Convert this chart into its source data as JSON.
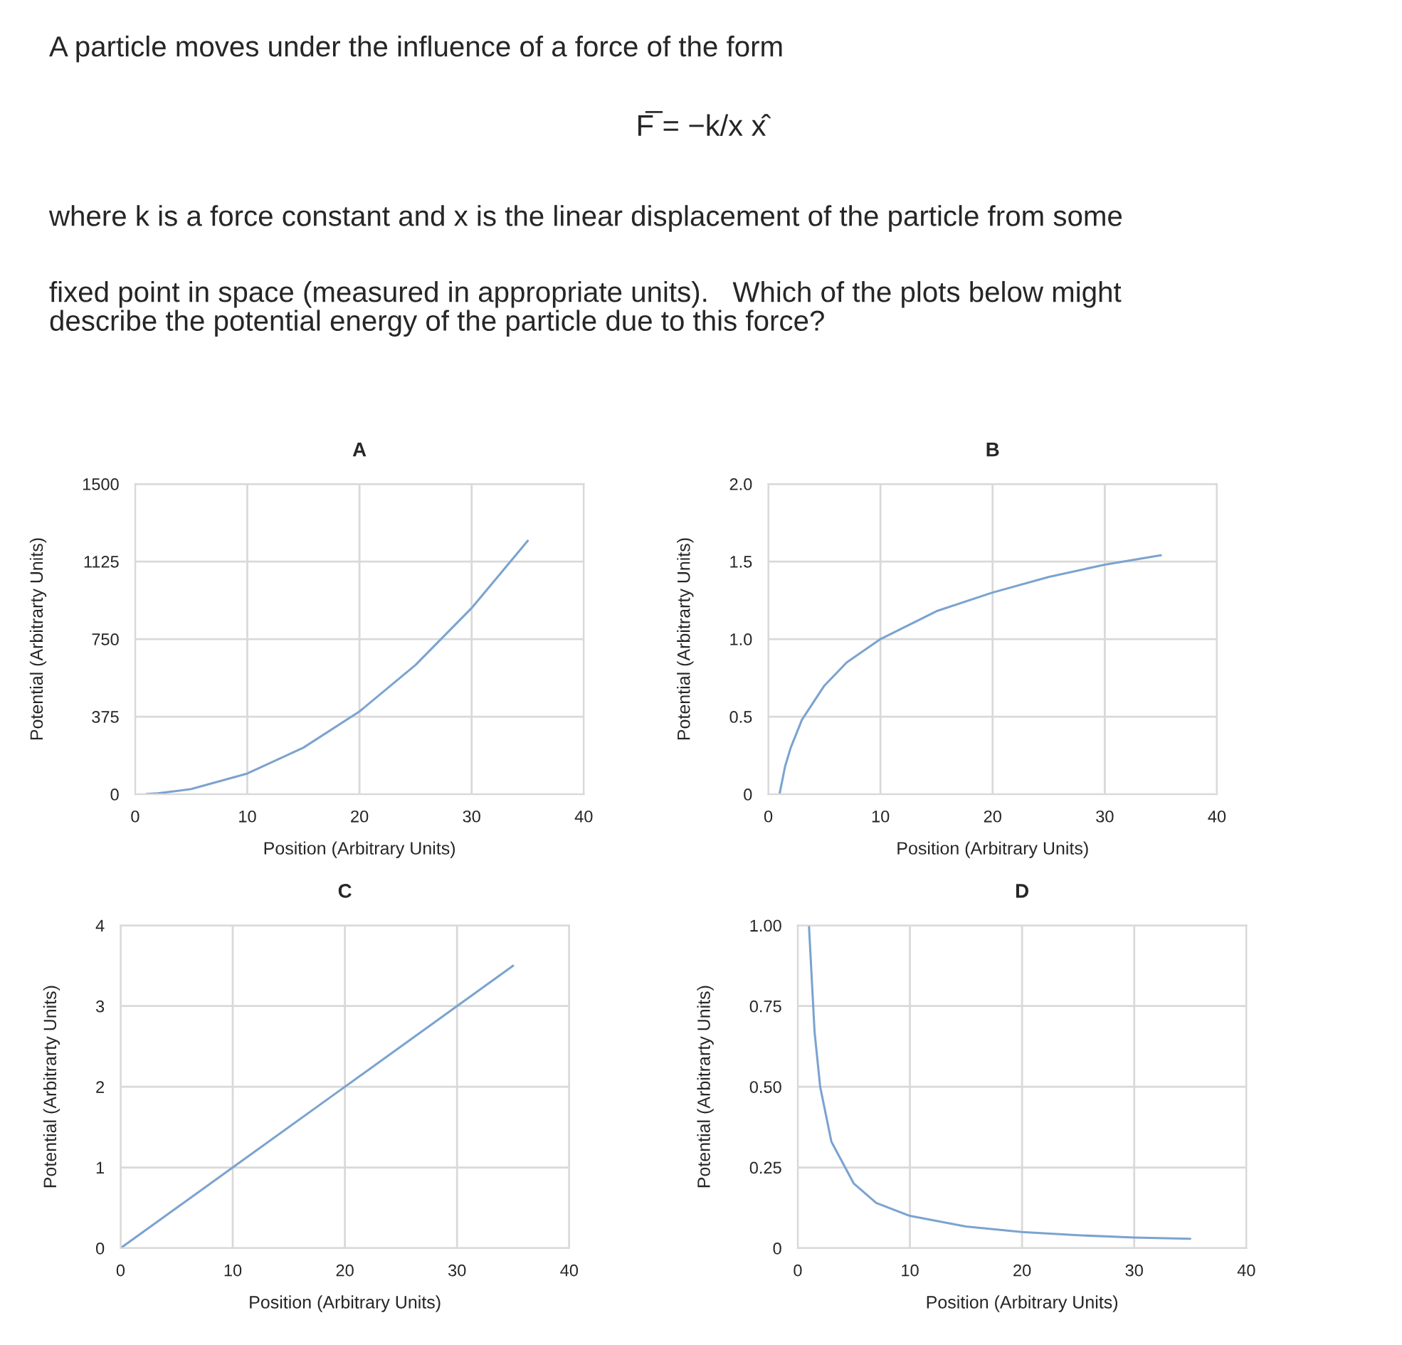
{
  "chart_data": [
    {
      "type": "other",
      "annotations": [
        "A particle moves under the influence of a force of the form",
        "F̅ = −k/x x̂",
        "where k is a force constant and x is the linear displacement of the particle from some",
        "fixed point in space (measured in appropriate units).   Which of the plots below might\ndescribe the potential energy of the particle due to this force?"
      ]
    },
    {
      "type": "line",
      "title": "A",
      "xlabel": "Position (Arbitrary Units)",
      "ylabel": "Potential (Arbitrarty Units)",
      "grid": true,
      "xlim": [
        0,
        40
      ],
      "xticks": [
        0,
        10,
        20,
        30,
        40
      ],
      "ylim": [
        0,
        1500
      ],
      "yticks": [
        0,
        375,
        750,
        1125,
        1500
      ],
      "x": [
        1,
        2,
        5,
        10,
        15,
        20,
        25,
        30,
        35
      ],
      "series": [
        {
          "color": "#7ba3d0",
          "values": [
            1,
            4,
            25,
            100,
            225,
            400,
            625,
            900,
            1225
          ]
        }
      ]
    },
    {
      "type": "line",
      "title": "B",
      "xlabel": "Position (Arbitrary Units)",
      "ylabel": "Potential (Arbitrarty Units)",
      "grid": true,
      "xlim": [
        0,
        40
      ],
      "xticks": [
        0,
        10,
        20,
        30,
        40
      ],
      "ylim": [
        0,
        2
      ],
      "yticks": [
        0,
        {
          "value": 0.5,
          "label": "0.5"
        },
        {
          "value": 1,
          "label": "1.0"
        },
        {
          "value": 1.5,
          "label": "1.5"
        },
        {
          "value": 2,
          "label": "2.0"
        }
      ],
      "x": [
        1,
        1.5,
        2,
        3,
        5,
        7,
        10,
        15,
        20,
        25,
        30,
        35
      ],
      "series": [
        {
          "color": "#7ba3d0",
          "values": [
            0,
            0.18,
            0.3,
            0.48,
            0.7,
            0.85,
            1.0,
            1.18,
            1.3,
            1.4,
            1.48,
            1.54
          ]
        }
      ]
    },
    {
      "type": "line",
      "title": "C",
      "xlabel": "Position (Arbitrary Units)",
      "ylabel": "Potential (Arbitrarty Units)",
      "grid": true,
      "xlim": [
        0,
        40
      ],
      "xticks": [
        0,
        10,
        20,
        30,
        40
      ],
      "ylim": [
        0,
        4
      ],
      "yticks": [
        0,
        1,
        2,
        3,
        4
      ],
      "x": [
        0,
        10,
        20,
        30,
        35
      ],
      "series": [
        {
          "color": "#7ba3d0",
          "values": [
            0,
            1,
            2,
            3,
            3.5
          ]
        }
      ]
    },
    {
      "type": "line",
      "title": "D",
      "xlabel": "Position (Arbitrary Units)",
      "ylabel": "Potential (Arbitrarty Units)",
      "grid": true,
      "xlim": [
        0,
        40
      ],
      "xticks": [
        0,
        10,
        20,
        30,
        40
      ],
      "ylim": [
        0,
        1
      ],
      "yticks": [
        0,
        {
          "value": 0.25,
          "label": "0.25"
        },
        {
          "value": 0.5,
          "label": "0.50"
        },
        {
          "value": 0.75,
          "label": "0.75"
        },
        {
          "value": 1,
          "label": "1.00"
        }
      ],
      "x": [
        1,
        1.5,
        2,
        3,
        5,
        7,
        10,
        15,
        20,
        25,
        30,
        35
      ],
      "series": [
        {
          "color": "#7ba3d0",
          "values": [
            1.0,
            0.67,
            0.5,
            0.33,
            0.2,
            0.14,
            0.1,
            0.067,
            0.05,
            0.04,
            0.033,
            0.029
          ]
        }
      ]
    }
  ]
}
